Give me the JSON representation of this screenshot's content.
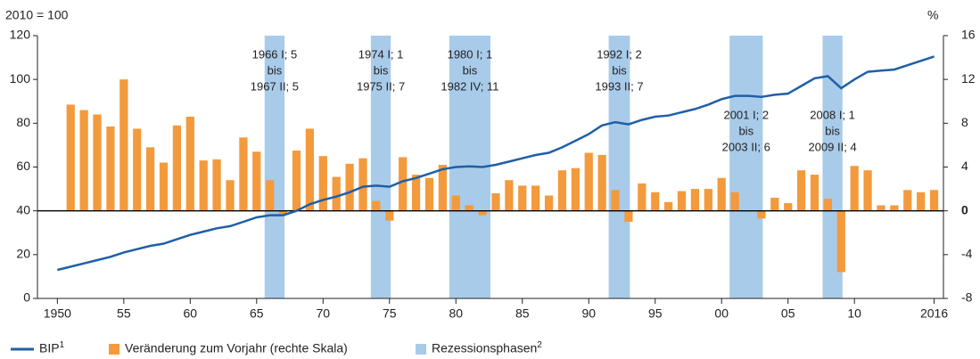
{
  "chart_data": {
    "type": "bar-line",
    "y_axis_label": "2010 = 100",
    "y2_axis_label": "%",
    "x": [
      1950,
      1951,
      1952,
      1953,
      1954,
      1955,
      1956,
      1957,
      1958,
      1959,
      1960,
      1961,
      1962,
      1963,
      1964,
      1965,
      1966,
      1967,
      1968,
      1969,
      1970,
      1971,
      1972,
      1973,
      1974,
      1975,
      1976,
      1977,
      1978,
      1979,
      1980,
      1981,
      1982,
      1983,
      1984,
      1985,
      1986,
      1987,
      1988,
      1989,
      1990,
      1991,
      1992,
      1993,
      1994,
      1995,
      1996,
      1997,
      1998,
      1999,
      2000,
      2001,
      2002,
      2003,
      2004,
      2005,
      2006,
      2007,
      2008,
      2009,
      2010,
      2011,
      2012,
      2013,
      2014,
      2015,
      2016
    ],
    "xlim": [
      1948.5,
      2016.7
    ],
    "xticks": [
      {
        "value": 1950,
        "label": "1950"
      },
      {
        "value": 1955,
        "label": "55"
      },
      {
        "value": 1960,
        "label": "60"
      },
      {
        "value": 1965,
        "label": "65"
      },
      {
        "value": 1970,
        "label": "70"
      },
      {
        "value": 1975,
        "label": "75"
      },
      {
        "value": 1980,
        "label": "80"
      },
      {
        "value": 1985,
        "label": "85"
      },
      {
        "value": 1990,
        "label": "90"
      },
      {
        "value": 1995,
        "label": "95"
      },
      {
        "value": 2000,
        "label": "00"
      },
      {
        "value": 2005,
        "label": "05"
      },
      {
        "value": 2010,
        "label": "10"
      },
      {
        "value": 2016,
        "label": "2016"
      }
    ],
    "ylim": [
      0,
      120
    ],
    "yticks": [
      0,
      20,
      40,
      60,
      80,
      100,
      120
    ],
    "y2lim": [
      -8,
      16
    ],
    "y2ticks": [
      -8,
      -4,
      0,
      4,
      8,
      12,
      16
    ],
    "series": [
      {
        "name": "BIP",
        "name_sup": "1",
        "type": "line",
        "color": "#1f5fa8",
        "values": [
          13,
          14.5,
          16,
          17.5,
          19,
          21,
          22.5,
          24,
          25,
          27,
          29,
          30.5,
          32,
          33,
          35,
          37,
          38,
          38,
          40,
          43,
          45,
          46.5,
          48.5,
          51,
          51.5,
          51,
          53.5,
          55,
          57,
          59,
          60,
          60.3,
          60,
          61,
          62.5,
          64,
          65.5,
          66.5,
          69,
          72,
          75,
          79,
          80.5,
          79.5,
          81.5,
          83,
          83.5,
          85,
          86.5,
          88.5,
          91,
          92.5,
          92.5,
          92,
          93,
          93.5,
          97,
          100.5,
          101.5,
          96,
          100,
          103.5,
          104,
          104.5,
          106.5,
          108.5,
          110.5
        ]
      },
      {
        "name": "Veränderung zum Vorjahr (rechte Skala)",
        "type": "bar",
        "axis": "y2",
        "color": "#f39a3c",
        "x": [
          1951,
          1952,
          1953,
          1954,
          1955,
          1956,
          1957,
          1958,
          1959,
          1960,
          1961,
          1962,
          1963,
          1964,
          1965,
          1966,
          1967,
          1968,
          1969,
          1970,
          1971,
          1972,
          1973,
          1974,
          1975,
          1976,
          1977,
          1978,
          1979,
          1980,
          1981,
          1982,
          1983,
          1984,
          1985,
          1986,
          1987,
          1988,
          1989,
          1990,
          1991,
          1992,
          1993,
          1994,
          1995,
          1996,
          1997,
          1998,
          1999,
          2000,
          2001,
          2002,
          2003,
          2004,
          2005,
          2006,
          2007,
          2008,
          2009,
          2010,
          2011,
          2012,
          2013,
          2014,
          2015,
          2016
        ],
        "values": [
          9.7,
          9.2,
          8.8,
          7.7,
          12.0,
          7.5,
          5.8,
          4.4,
          7.8,
          8.6,
          4.6,
          4.7,
          2.8,
          6.7,
          5.4,
          2.8,
          -0.3,
          5.5,
          7.5,
          5.0,
          3.1,
          4.3,
          4.8,
          0.9,
          -0.9,
          4.9,
          3.3,
          3.0,
          4.2,
          1.4,
          0.5,
          -0.4,
          1.6,
          2.8,
          2.3,
          2.3,
          1.4,
          3.7,
          3.9,
          5.3,
          5.1,
          1.9,
          -1.0,
          2.5,
          1.7,
          0.8,
          1.8,
          2.0,
          2.0,
          3.0,
          1.7,
          0.0,
          -0.7,
          1.2,
          0.7,
          3.7,
          3.3,
          1.1,
          -5.6,
          4.1,
          3.7,
          0.5,
          0.5,
          1.9,
          1.7,
          1.9
        ]
      }
    ],
    "recessions": {
      "name": "Rezessionsphasen",
      "name_sup": "2",
      "color": "#a9cbea",
      "bands": [
        {
          "x": [
            1965.6,
            1967.1
          ],
          "label": [
            "1966 I; 5",
            "bis",
            "1967 II; 5"
          ]
        },
        {
          "x": [
            1973.6,
            1975.1
          ],
          "label": [
            "1974 I; 1",
            "bis",
            "1975 II; 7"
          ]
        },
        {
          "x": [
            1979.5,
            1982.6
          ],
          "label": [
            "1980 I; 1",
            "bis",
            "1982 IV; 11"
          ]
        },
        {
          "x": [
            1991.5,
            1993.1
          ],
          "label": [
            "1992 I; 2",
            "bis",
            "1993 II; 7"
          ]
        },
        {
          "x": [
            2000.6,
            2003.1
          ],
          "label": [
            "2001 I; 2",
            "bis",
            "2003 II; 6"
          ]
        },
        {
          "x": [
            2007.6,
            2009.1
          ],
          "label": [
            "2008 I; 1",
            "bis",
            "2009 II; 4"
          ]
        }
      ]
    }
  }
}
